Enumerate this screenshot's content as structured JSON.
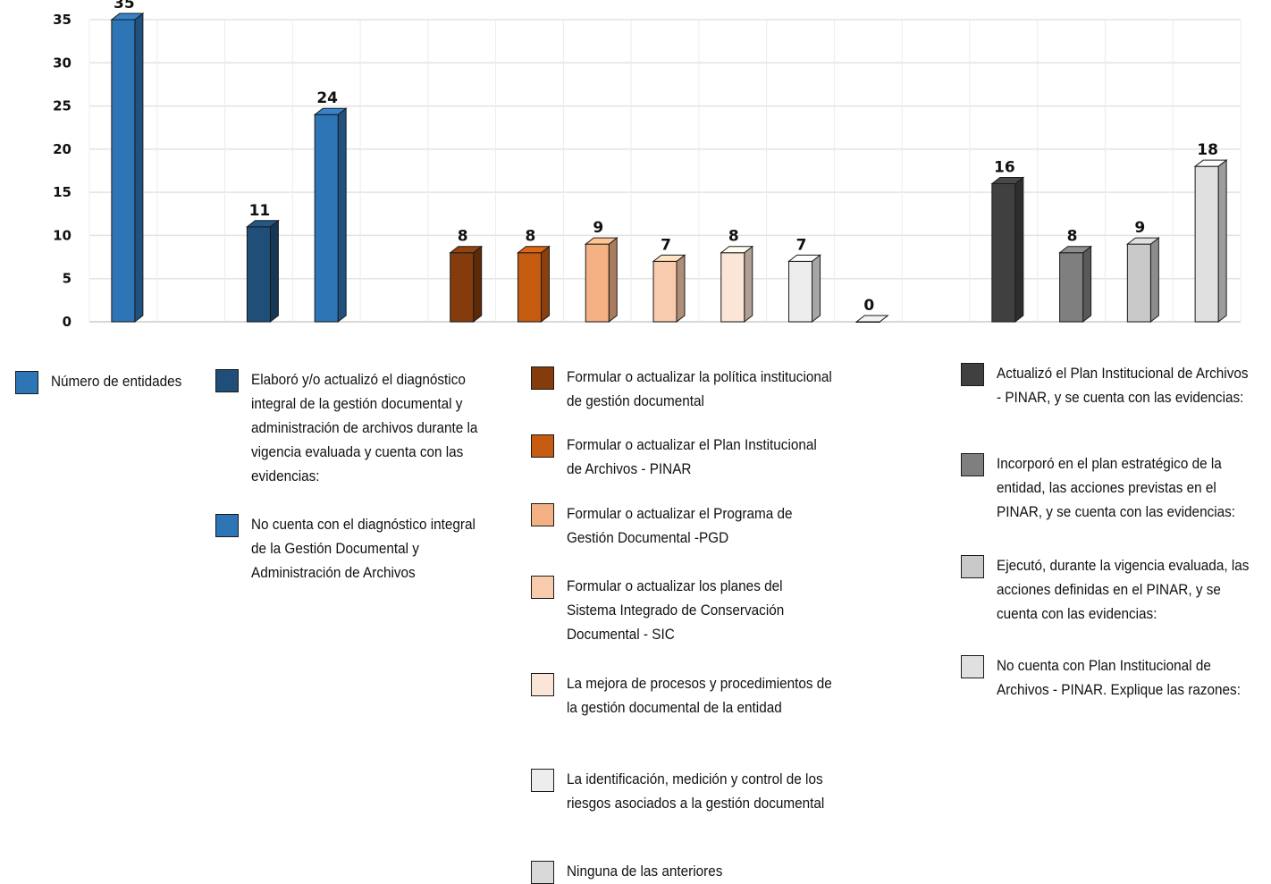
{
  "chart_data": {
    "type": "bar",
    "title": "",
    "xlabel": "",
    "ylabel": "",
    "ylim": [
      0,
      35
    ],
    "yticks": [
      0,
      5,
      10,
      15,
      20,
      25,
      30,
      35
    ],
    "grid": true,
    "bar_style": "3d",
    "groups": [
      {
        "series": [
          {
            "name": "Número de entidades",
            "value": 35,
            "color": "#2E75B6"
          }
        ]
      },
      {
        "series": [
          {
            "name": "Elaboró  y/o actualizó el diagnóstico integral de la gestión documental y administración de archivos durante la vigencia evaluada y cuenta con las evidencias:",
            "value": 11,
            "color": "#1F4E79"
          },
          {
            "name": "No cuenta con el diagnóstico integral de la Gestión Documental y Administración de Archivos",
            "value": 24,
            "color": "#2E75B6"
          }
        ]
      },
      {
        "series": [
          {
            "name": "Formular o actualizar la política institucional de gestión documental",
            "value": 8,
            "color": "#843C0C"
          },
          {
            "name": "Formular o actualizar el Plan Institucional de Archivos - PINAR",
            "value": 8,
            "color": "#C55A11"
          },
          {
            "name": "Formular o actualizar el Programa de Gestión Documental -PGD",
            "value": 9,
            "color": "#F4B183"
          },
          {
            "name": "Formular o actualizar los planes del Sistema Integrado de Conservación Documental - SIC",
            "value": 7,
            "color": "#F8CBAD"
          },
          {
            "name": "La mejora de procesos y procedimientos de la gestión documental de la entidad",
            "value": 8,
            "color": "#FBE5D6"
          },
          {
            "name": "La identificación, medición y control de los riesgos asociados a la gestión documental",
            "value": 7,
            "color": "#EDEDED"
          },
          {
            "name": "Ninguna de las anteriores",
            "value": 0,
            "color": "#D9D9D9"
          }
        ]
      },
      {
        "series": [
          {
            "name": "Actualizó el Plan Institucional de Archivos - PINAR, y se cuenta con las evidencias:",
            "value": 16,
            "color": "#404040"
          },
          {
            "name": "Incorporó en el plan estratégico de la entidad, las acciones previstas en el PINAR, y se cuenta con las evidencias:",
            "value": 8,
            "color": "#7F7F7F"
          },
          {
            "name": "Ejecutó, durante la vigencia evaluada, las acciones definidas en el PINAR, y se cuenta con las evidencias:",
            "value": 9,
            "color": "#C9C9C9"
          },
          {
            "name": "No cuenta con Plan Institucional de Archivos - PINAR. Explique las razones:",
            "value": 18,
            "color": "#E0E0E0"
          }
        ]
      }
    ]
  }
}
